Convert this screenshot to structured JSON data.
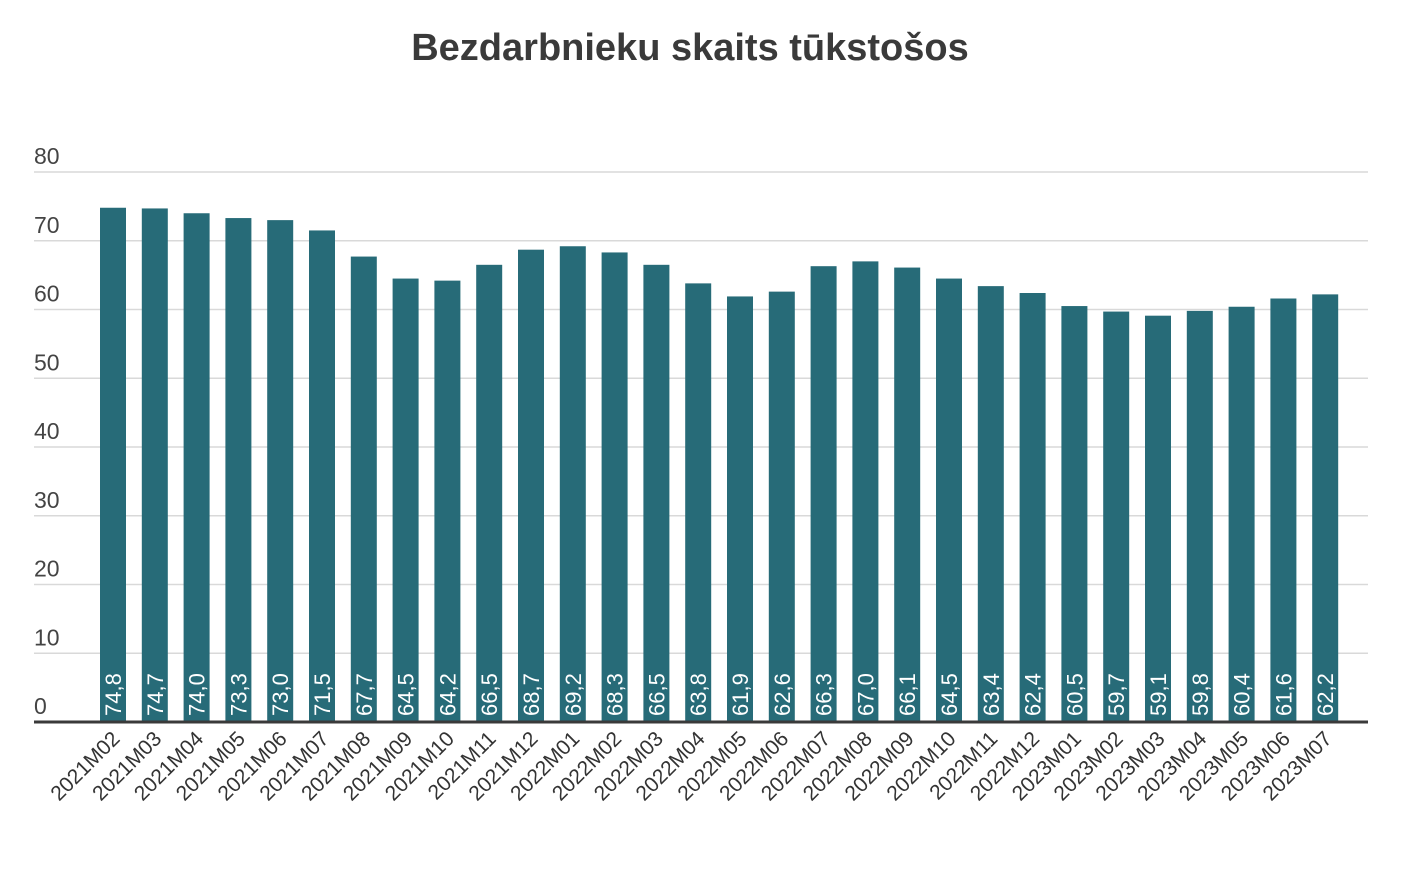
{
  "chart_data": {
    "type": "bar",
    "title": "Bezdarbnieku skaits tūkstošos",
    "xlabel": "",
    "ylabel": "",
    "ylim": [
      0,
      80
    ],
    "yticks": [
      0,
      10,
      20,
      30,
      40,
      50,
      60,
      70,
      80
    ],
    "grid": true,
    "legend": "none",
    "bar_color": "#276b78",
    "categories": [
      "2021M02",
      "2021M03",
      "2021M04",
      "2021M05",
      "2021M06",
      "2021M07",
      "2021M08",
      "2021M09",
      "2021M10",
      "2021M11",
      "2021M12",
      "2022M01",
      "2022M02",
      "2022M03",
      "2022M04",
      "2022M05",
      "2022M06",
      "2022M07",
      "2022M08",
      "2022M09",
      "2022M10",
      "2022M11",
      "2022M12",
      "2023M01",
      "2023M02",
      "2023M03",
      "2023M04",
      "2023M05",
      "2023M06",
      "2023M07"
    ],
    "values": [
      74.8,
      74.7,
      74.0,
      73.3,
      73.0,
      71.5,
      67.7,
      64.5,
      64.2,
      66.5,
      68.7,
      69.2,
      68.3,
      66.5,
      63.8,
      61.9,
      62.6,
      66.3,
      67.0,
      66.1,
      64.5,
      63.4,
      62.4,
      60.5,
      59.7,
      59.1,
      59.8,
      60.4,
      61.6,
      62.2
    ],
    "data_labels": [
      "74,8",
      "74,7",
      "74,0",
      "73,3",
      "73,0",
      "71,5",
      "67,7",
      "64,5",
      "64,2",
      "66,5",
      "68,7",
      "69,2",
      "68,3",
      "66,5",
      "63,8",
      "61,9",
      "62,6",
      "66,3",
      "67,0",
      "66,1",
      "64,5",
      "63,4",
      "62,4",
      "60,5",
      "59,7",
      "59,1",
      "59,8",
      "60,4",
      "61,6",
      "62,2"
    ]
  }
}
